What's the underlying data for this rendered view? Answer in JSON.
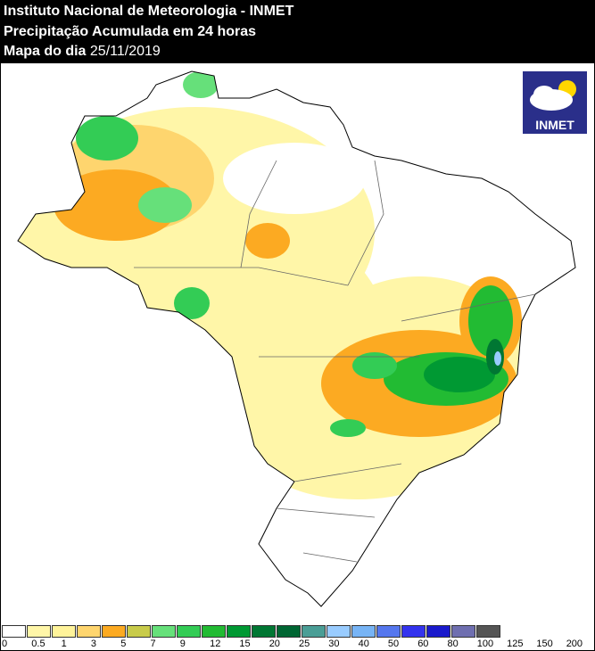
{
  "header": {
    "line1": "Instituto Nacional de Meteorologia - INMET",
    "line2": "Precipitação Acumulada em 24 horas",
    "line3_label": "Mapa do dia",
    "date": "25/11/2019"
  },
  "logo": {
    "text": "INMET"
  },
  "legend": {
    "unit_note": "",
    "labels": [
      "0",
      "0.5",
      "1",
      "3",
      "5",
      "7",
      "9",
      "12",
      "15",
      "20",
      "25",
      "30",
      "40",
      "50",
      "60",
      "80",
      "100",
      "125",
      "150",
      "200"
    ],
    "colors": [
      "#ffffff",
      "#fff6a8",
      "#fff39a",
      "#fed56e",
      "#fcaa22",
      "#c8cb4a",
      "#66e07a",
      "#33cc55",
      "#22bb33",
      "#009933",
      "#007733",
      "#006633",
      "#4a9e96",
      "#99ccff",
      "#77b4f5",
      "#5577ee",
      "#3333ee",
      "#1a1acc",
      "#6f6fb0",
      "#555555"
    ]
  }
}
